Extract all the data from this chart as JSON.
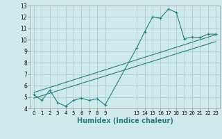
{
  "xlabel": "Humidex (Indice chaleur)",
  "bg_color": "#ceeaea",
  "line_color": "#2a7d7d",
  "grid_color": "#aacece",
  "ylim": [
    4,
    13
  ],
  "yticks": [
    4,
    5,
    6,
    7,
    8,
    9,
    10,
    11,
    12,
    13
  ],
  "xtick_positions": [
    0,
    1,
    2,
    3,
    4,
    5,
    6,
    7,
    8,
    9,
    13,
    14,
    15,
    16,
    17,
    18,
    19,
    20,
    21,
    22,
    23
  ],
  "xtick_labels": [
    "0",
    "1",
    "2",
    "3",
    "4",
    "5",
    "6",
    "7",
    "8",
    "9",
    "13",
    "14",
    "15",
    "16",
    "17",
    "18",
    "19",
    "20",
    "21",
    "22",
    "23"
  ],
  "xlim": [
    -0.5,
    23.5
  ],
  "line1_x": [
    0,
    1,
    2,
    3,
    4,
    5,
    6,
    7,
    8,
    9,
    13,
    14,
    15,
    16,
    17,
    18,
    19,
    20,
    21,
    22,
    23
  ],
  "line1_y": [
    5.2,
    4.7,
    5.6,
    4.5,
    4.2,
    4.7,
    4.9,
    4.7,
    4.85,
    4.3,
    9.3,
    10.7,
    12.0,
    11.9,
    12.7,
    12.4,
    10.1,
    10.25,
    10.2,
    10.5,
    10.5
  ],
  "line2_x": [
    0,
    23
  ],
  "line2_y": [
    4.9,
    9.85
  ],
  "line3_x": [
    0,
    23
  ],
  "line3_y": [
    5.4,
    10.45
  ]
}
